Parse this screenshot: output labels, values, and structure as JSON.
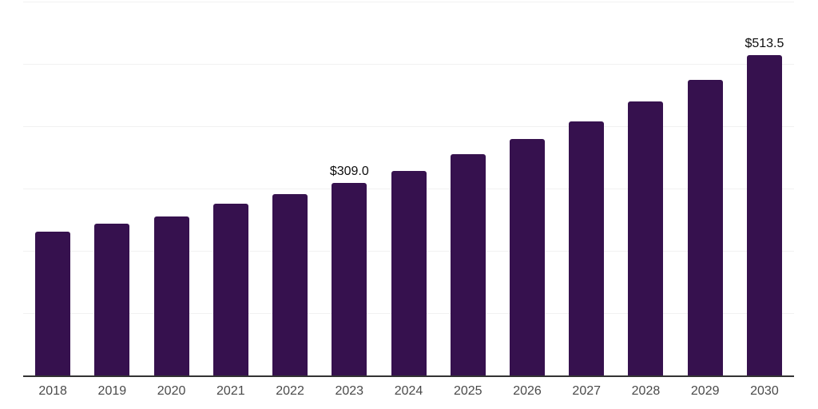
{
  "chart_data": {
    "type": "bar",
    "title": "",
    "xlabel": "",
    "ylabel": "",
    "categories": [
      "2018",
      "2019",
      "2020",
      "2021",
      "2022",
      "2023",
      "2024",
      "2025",
      "2026",
      "2027",
      "2028",
      "2029",
      "2030"
    ],
    "values": [
      230.4,
      244.1,
      255.1,
      276.1,
      291.0,
      309.0,
      327.7,
      354.9,
      379.8,
      408.3,
      440.3,
      474.5,
      513.5
    ],
    "value_labels": {
      "2023": "$309.0",
      "2030": "$513.5"
    },
    "value_prefix": "$",
    "ylim": [
      0,
      600
    ],
    "gridline_step": 100,
    "grid": "horizontal-only",
    "legend": "none",
    "y_axis_labels_visible": false,
    "colors": {
      "bar": "#36114E",
      "gridline": "#f1f1f1",
      "axis_line": "#333333",
      "tick_label": "#4a4a4a",
      "value_label": "#0d0d0d",
      "background": "#ffffff"
    }
  }
}
